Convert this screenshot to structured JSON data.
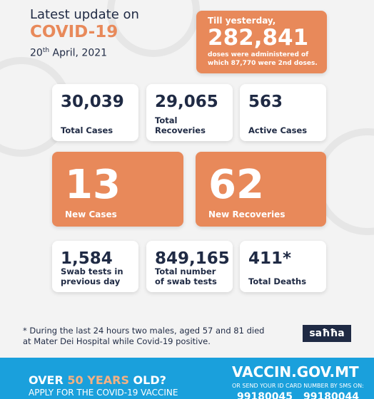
{
  "header": {
    "title": "Latest update on",
    "subject": "COVID-19",
    "date": {
      "day": "20",
      "suffix": "th",
      "rest": "April, 2021"
    }
  },
  "vaccine": {
    "intro": "Till yesterday,",
    "value": "282,841",
    "text": "doses were administered of which 87,770 were 2nd doses."
  },
  "stats": [
    {
      "value": "30,039",
      "label": "Total Cases"
    },
    {
      "value": "29,065",
      "label": "Total Recoveries"
    },
    {
      "value": "563",
      "label": "Active Cases"
    },
    {
      "value": "13",
      "label": "New Cases"
    },
    {
      "value": "62",
      "label": "New Recoveries"
    },
    {
      "value": "1,584",
      "label": "Swab tests in previous day"
    },
    {
      "value": "849,165",
      "label": "Total number of swab tests"
    },
    {
      "value": "411*",
      "label": "Total Deaths"
    }
  ],
  "footnote": "* During the last 24 hours two males, aged 57 and 81 died at Mater Dei Hospital while Covid-19 positive.",
  "logo": "saħħa",
  "banner": {
    "over": "OVER",
    "age": "50 YEARS",
    "old": "OLD?",
    "apply": "APPLY FOR THE COVID-19 VACCINE",
    "site": "VACCIN.GOV.MT",
    "sms": "OR SEND YOUR ID CARD NUMBER BY SMS ON:",
    "numbers": [
      "99180045",
      "99180044"
    ]
  }
}
